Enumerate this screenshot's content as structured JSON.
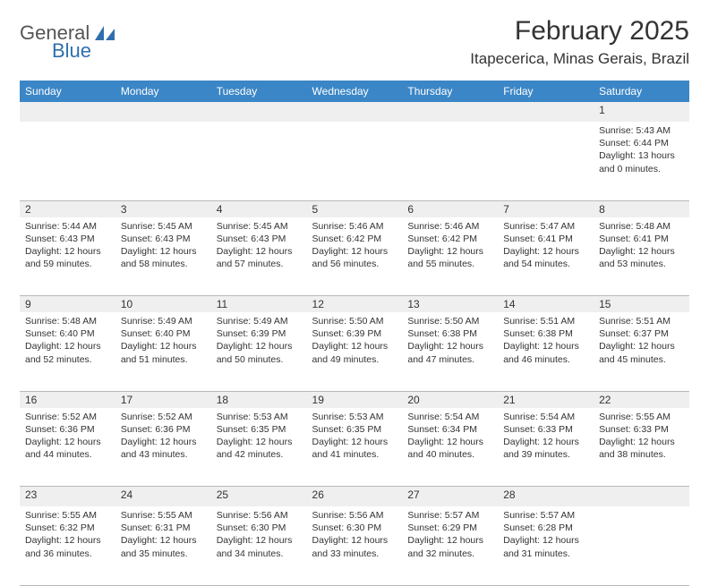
{
  "brand": {
    "word1": "General",
    "word2": "Blue",
    "icon_color": "#2f6fae"
  },
  "title": "February 2025",
  "location": "Itapecerica, Minas Gerais, Brazil",
  "header_bg": "#3b86c6",
  "header_fg": "#ffffff",
  "daynum_bg": "#efefef",
  "border_color": "#b8b8b8",
  "weekdays": [
    "Sunday",
    "Monday",
    "Tuesday",
    "Wednesday",
    "Thursday",
    "Friday",
    "Saturday"
  ],
  "weeks": [
    [
      null,
      null,
      null,
      null,
      null,
      null,
      {
        "n": "1",
        "sr": "5:43 AM",
        "ss": "6:44 PM",
        "dl": "13 hours and 0 minutes."
      }
    ],
    [
      {
        "n": "2",
        "sr": "5:44 AM",
        "ss": "6:43 PM",
        "dl": "12 hours and 59 minutes."
      },
      {
        "n": "3",
        "sr": "5:45 AM",
        "ss": "6:43 PM",
        "dl": "12 hours and 58 minutes."
      },
      {
        "n": "4",
        "sr": "5:45 AM",
        "ss": "6:43 PM",
        "dl": "12 hours and 57 minutes."
      },
      {
        "n": "5",
        "sr": "5:46 AM",
        "ss": "6:42 PM",
        "dl": "12 hours and 56 minutes."
      },
      {
        "n": "6",
        "sr": "5:46 AM",
        "ss": "6:42 PM",
        "dl": "12 hours and 55 minutes."
      },
      {
        "n": "7",
        "sr": "5:47 AM",
        "ss": "6:41 PM",
        "dl": "12 hours and 54 minutes."
      },
      {
        "n": "8",
        "sr": "5:48 AM",
        "ss": "6:41 PM",
        "dl": "12 hours and 53 minutes."
      }
    ],
    [
      {
        "n": "9",
        "sr": "5:48 AM",
        "ss": "6:40 PM",
        "dl": "12 hours and 52 minutes."
      },
      {
        "n": "10",
        "sr": "5:49 AM",
        "ss": "6:40 PM",
        "dl": "12 hours and 51 minutes."
      },
      {
        "n": "11",
        "sr": "5:49 AM",
        "ss": "6:39 PM",
        "dl": "12 hours and 50 minutes."
      },
      {
        "n": "12",
        "sr": "5:50 AM",
        "ss": "6:39 PM",
        "dl": "12 hours and 49 minutes."
      },
      {
        "n": "13",
        "sr": "5:50 AM",
        "ss": "6:38 PM",
        "dl": "12 hours and 47 minutes."
      },
      {
        "n": "14",
        "sr": "5:51 AM",
        "ss": "6:38 PM",
        "dl": "12 hours and 46 minutes."
      },
      {
        "n": "15",
        "sr": "5:51 AM",
        "ss": "6:37 PM",
        "dl": "12 hours and 45 minutes."
      }
    ],
    [
      {
        "n": "16",
        "sr": "5:52 AM",
        "ss": "6:36 PM",
        "dl": "12 hours and 44 minutes."
      },
      {
        "n": "17",
        "sr": "5:52 AM",
        "ss": "6:36 PM",
        "dl": "12 hours and 43 minutes."
      },
      {
        "n": "18",
        "sr": "5:53 AM",
        "ss": "6:35 PM",
        "dl": "12 hours and 42 minutes."
      },
      {
        "n": "19",
        "sr": "5:53 AM",
        "ss": "6:35 PM",
        "dl": "12 hours and 41 minutes."
      },
      {
        "n": "20",
        "sr": "5:54 AM",
        "ss": "6:34 PM",
        "dl": "12 hours and 40 minutes."
      },
      {
        "n": "21",
        "sr": "5:54 AM",
        "ss": "6:33 PM",
        "dl": "12 hours and 39 minutes."
      },
      {
        "n": "22",
        "sr": "5:55 AM",
        "ss": "6:33 PM",
        "dl": "12 hours and 38 minutes."
      }
    ],
    [
      {
        "n": "23",
        "sr": "5:55 AM",
        "ss": "6:32 PM",
        "dl": "12 hours and 36 minutes."
      },
      {
        "n": "24",
        "sr": "5:55 AM",
        "ss": "6:31 PM",
        "dl": "12 hours and 35 minutes."
      },
      {
        "n": "25",
        "sr": "5:56 AM",
        "ss": "6:30 PM",
        "dl": "12 hours and 34 minutes."
      },
      {
        "n": "26",
        "sr": "5:56 AM",
        "ss": "6:30 PM",
        "dl": "12 hours and 33 minutes."
      },
      {
        "n": "27",
        "sr": "5:57 AM",
        "ss": "6:29 PM",
        "dl": "12 hours and 32 minutes."
      },
      {
        "n": "28",
        "sr": "5:57 AM",
        "ss": "6:28 PM",
        "dl": "12 hours and 31 minutes."
      },
      null
    ]
  ],
  "labels": {
    "sunrise": "Sunrise:",
    "sunset": "Sunset:",
    "daylight": "Daylight:"
  }
}
